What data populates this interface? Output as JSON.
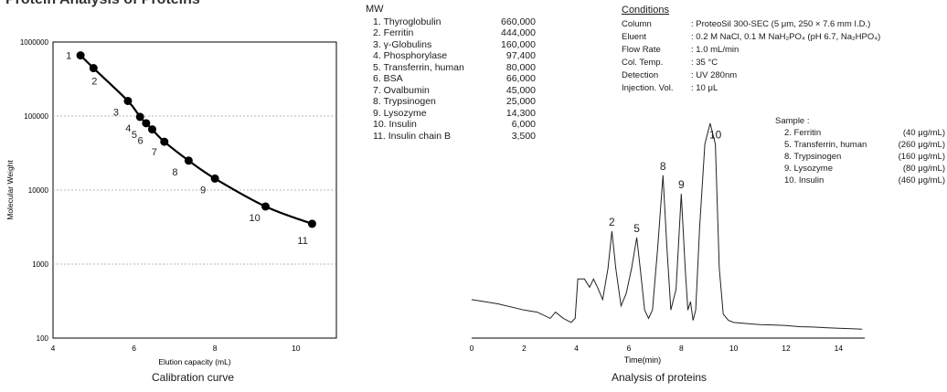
{
  "header_partial": "Protein Analysis of Proteins",
  "mw_table": {
    "heading": "MW",
    "rows": [
      {
        "name": "1. Thyroglobulin",
        "mw": "660,000"
      },
      {
        "name": "2. Ferritin",
        "mw": "444,000"
      },
      {
        "name": "3. γ-Globulins",
        "mw": "160,000"
      },
      {
        "name": "4. Phosphorylase",
        "mw": "97,400"
      },
      {
        "name": "5. Transferrin, human",
        "mw": "80,000"
      },
      {
        "name": "6. BSA",
        "mw": "66,000"
      },
      {
        "name": "7. Ovalbumin",
        "mw": "45,000"
      },
      {
        "name": "8. Trypsinogen",
        "mw": "25,000"
      },
      {
        "name": "9. Lysozyme",
        "mw": "14,300"
      },
      {
        "name": "10. Insulin",
        "mw": "6,000"
      },
      {
        "name": "11. Insulin chain B",
        "mw": "3,500"
      }
    ]
  },
  "conditions": {
    "title": "Conditions",
    "rows": [
      {
        "key": "Column",
        "value": ": ProteoSil 300-SEC (5 μm, 250 × 7.6 mm I.D.)"
      },
      {
        "key": "Eluent",
        "value": ": 0.2 M NaCl, 0.1 M NaH₂PO₄ (pH 6.7, Na₂HPO₄)"
      },
      {
        "key": "Flow Rate",
        "value": ": 1.0 mL/min"
      },
      {
        "key": "Col. Temp.",
        "value": ": 35 °C"
      },
      {
        "key": "Detection",
        "value": ": UV 280nm"
      },
      {
        "key": "Injection. Vol.",
        "value": ": 10 μL"
      }
    ]
  },
  "sample": {
    "title": "Sample :",
    "rows": [
      {
        "name": "2. Ferritin",
        "conc": "(40 μg/mL)"
      },
      {
        "name": "5. Transferrin, human",
        "conc": "(260 μg/mL)"
      },
      {
        "name": "8. Trypsinogen",
        "conc": "(160 μg/mL)"
      },
      {
        "name": "9. Lysozyme",
        "conc": "(80 μg/mL)"
      },
      {
        "name": "10. Insulin",
        "conc": "(460 μg/mL)"
      }
    ]
  },
  "chart_data": [
    {
      "type": "line",
      "caption": "Calibration curve",
      "xlabel": "Elution capacity (mL)",
      "ylabel": "Molecular Weight",
      "log_y": true,
      "xlim": [
        4,
        11
      ],
      "ylim": [
        100,
        1000000
      ],
      "xticks": [
        "4",
        "6",
        "8",
        "10"
      ],
      "yticks": [
        "100",
        "1000",
        "10000",
        "100000",
        "1000000"
      ],
      "series": [
        {
          "point_labels": [
            "1",
            "2",
            "3",
            "4",
            "5",
            "6",
            "7",
            "8",
            "9",
            "10",
            "11"
          ],
          "x": [
            4.68,
            5.0,
            5.85,
            6.15,
            6.3,
            6.45,
            6.75,
            7.35,
            8.0,
            9.25,
            10.4
          ],
          "y": [
            660000,
            444000,
            160000,
            97400,
            80000,
            66000,
            45000,
            25000,
            14300,
            6000,
            3500
          ]
        }
      ],
      "color": "#000000"
    },
    {
      "type": "line",
      "caption": "Analysis of proteins",
      "xlabel": "Time(min)",
      "xlim": [
        0,
        15
      ],
      "xticks": [
        "0",
        "2",
        "4",
        "6",
        "8",
        "10",
        "12",
        "14"
      ],
      "peak_labels": [
        {
          "label": "2",
          "t": 5.35
        },
        {
          "label": "5",
          "t": 6.3
        },
        {
          "label": "8",
          "t": 7.3
        },
        {
          "label": "9",
          "t": 8.0
        },
        {
          "label": "10",
          "t": 9.3
        }
      ],
      "series": [
        {
          "t": [
            0,
            1,
            2,
            2.5,
            3,
            3.2,
            3.5,
            3.8,
            3.95,
            4.05,
            4.3,
            4.5,
            4.65,
            4.8,
            5.0,
            5.2,
            5.35,
            5.5,
            5.7,
            5.9,
            6.1,
            6.3,
            6.45,
            6.6,
            6.75,
            6.9,
            7.1,
            7.3,
            7.45,
            7.6,
            7.8,
            8.0,
            8.15,
            8.25,
            8.35,
            8.45,
            8.55,
            8.7,
            8.9,
            9.1,
            9.3,
            9.45,
            9.6,
            9.8,
            10.0,
            10.5,
            11,
            11.5,
            12,
            12.5,
            13,
            13.5,
            14,
            14.5,
            14.9
          ],
          "signal": [
            0.15,
            0.13,
            0.1,
            0.09,
            0.06,
            0.09,
            0.06,
            0.04,
            0.06,
            0.25,
            0.25,
            0.21,
            0.25,
            0.21,
            0.15,
            0.3,
            0.48,
            0.3,
            0.12,
            0.18,
            0.3,
            0.45,
            0.28,
            0.1,
            0.06,
            0.1,
            0.4,
            0.75,
            0.4,
            0.1,
            0.2,
            0.66,
            0.3,
            0.1,
            0.14,
            0.05,
            0.1,
            0.5,
            0.9,
            1.0,
            0.9,
            0.3,
            0.08,
            0.05,
            0.04,
            0.035,
            0.03,
            0.028,
            0.025,
            0.02,
            0.018,
            0.015,
            0.012,
            0.01,
            0.008
          ]
        }
      ],
      "color": "#333333"
    }
  ]
}
